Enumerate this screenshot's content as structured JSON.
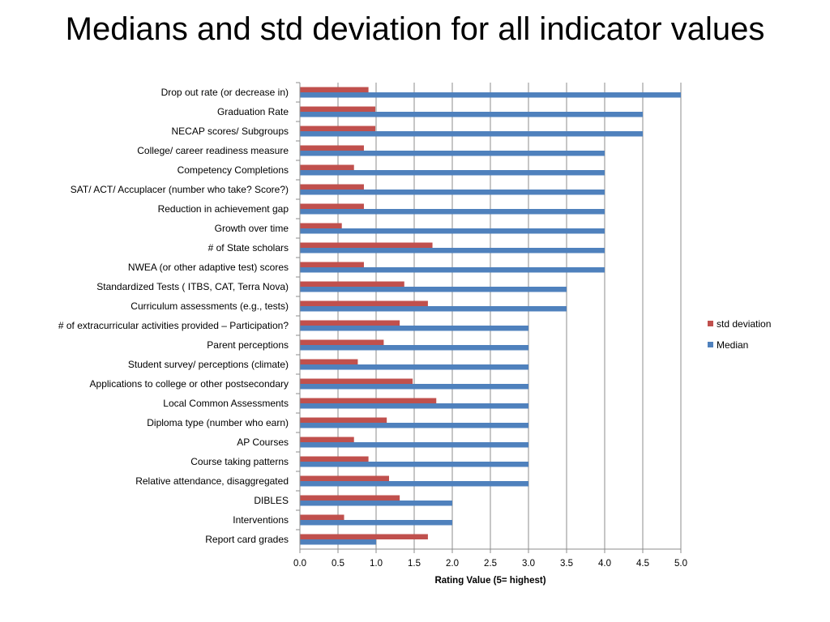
{
  "title": "Medians and std deviation for all indicator values",
  "chart_data": {
    "type": "bar",
    "orientation": "horizontal",
    "categories": [
      "Drop out rate (or decrease in)",
      "Graduation Rate",
      "NECAP scores/ Subgroups",
      "College/ career readiness measure",
      "Competency Completions",
      "SAT/ ACT/ Accuplacer (number who take? Score?)",
      "Reduction in achievement gap",
      "Growth over time",
      "# of State scholars",
      "NWEA (or other adaptive test) scores",
      "Standardized Tests ( ITBS, CAT, Terra Nova)",
      "Curriculum assessments (e.g., tests)",
      "# of extracurricular activities provided – Participation?",
      "Parent perceptions",
      "Student survey/ perceptions (climate)",
      "Applications to college or other postsecondary",
      "Local Common Assessments",
      "Diploma type (number who earn)",
      "AP Courses",
      "Course taking patterns",
      "Relative attendance, disaggregated",
      "DIBLES",
      "Interventions",
      "Report card grades"
    ],
    "series": [
      {
        "name": "std deviation",
        "color": "#c0504d",
        "values": [
          0.9,
          0.99,
          0.99,
          0.84,
          0.71,
          0.84,
          0.84,
          0.55,
          1.74,
          0.84,
          1.37,
          1.68,
          1.31,
          1.1,
          0.76,
          1.48,
          1.79,
          1.14,
          0.71,
          0.9,
          1.17,
          1.31,
          0.58,
          1.68
        ]
      },
      {
        "name": "Median",
        "color": "#4f81bd",
        "values": [
          5,
          4.5,
          4.5,
          4,
          4,
          4,
          4,
          4,
          4,
          4,
          3.5,
          3.5,
          3,
          3,
          3,
          3,
          3,
          3,
          3,
          3,
          3,
          2,
          2,
          1
        ]
      }
    ],
    "xlim": [
      0,
      5
    ],
    "xticks": [
      "0.0",
      "0.5",
      "1.0",
      "1.5",
      "2.0",
      "2.5",
      "3.0",
      "3.5",
      "4.0",
      "4.5",
      "5.0"
    ],
    "xlabel": "Rating Value (5= highest)",
    "grid": true,
    "legend_position": "right"
  }
}
